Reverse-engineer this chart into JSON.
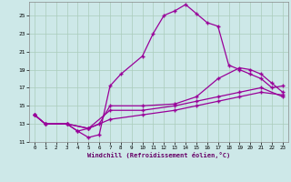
{
  "xlabel": "Windchill (Refroidissement éolien,°C)",
  "bg_color": "#cde8e8",
  "line_color": "#990099",
  "grid_color": "#aaccbb",
  "xlim": [
    -0.5,
    23.5
  ],
  "ylim": [
    11,
    26.5
  ],
  "xticks": [
    0,
    1,
    2,
    3,
    4,
    5,
    6,
    7,
    8,
    9,
    10,
    11,
    12,
    13,
    14,
    15,
    16,
    17,
    18,
    19,
    20,
    21,
    22,
    23
  ],
  "yticks": [
    11,
    13,
    15,
    17,
    19,
    21,
    23,
    25
  ],
  "line1_x": [
    0,
    1,
    3,
    4,
    5,
    6,
    7,
    8,
    10,
    11,
    12,
    13,
    14,
    15,
    16,
    17,
    18,
    19,
    20,
    21,
    22,
    23
  ],
  "line1_y": [
    14,
    13,
    13,
    12.2,
    11.5,
    11.8,
    17.2,
    18.5,
    20.5,
    23,
    25,
    25.5,
    26.2,
    25.2,
    24.2,
    23.8,
    19.5,
    19,
    18.5,
    18,
    17,
    17.2
  ],
  "line2_x": [
    0,
    1,
    3,
    4,
    5,
    6,
    7,
    10,
    13,
    15,
    17,
    19,
    20,
    21,
    22,
    23
  ],
  "line2_y": [
    14,
    13,
    13,
    12.2,
    12.5,
    13,
    15,
    15,
    15.2,
    16,
    18,
    19.2,
    19,
    18.5,
    17.5,
    16.5
  ],
  "line3_x": [
    0,
    1,
    3,
    5,
    7,
    10,
    13,
    15,
    17,
    19,
    21,
    23
  ],
  "line3_y": [
    14,
    13,
    13,
    12.5,
    14.5,
    14.5,
    15,
    15.5,
    16,
    16.5,
    17,
    16
  ],
  "line4_x": [
    0,
    1,
    3,
    5,
    7,
    10,
    13,
    15,
    17,
    19,
    21,
    23
  ],
  "line4_y": [
    14,
    13,
    13,
    12.5,
    13.5,
    14,
    14.5,
    15,
    15.5,
    16,
    16.5,
    16.2
  ]
}
